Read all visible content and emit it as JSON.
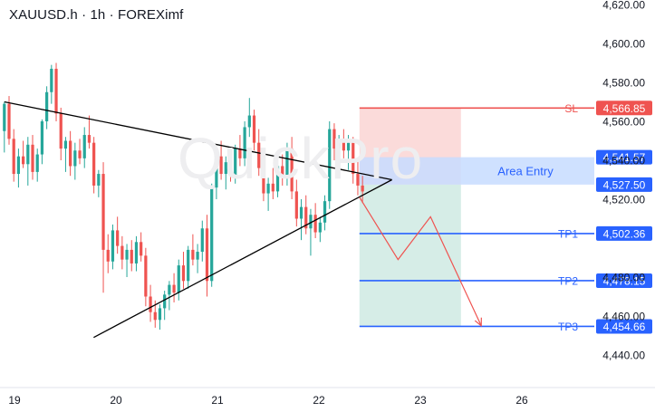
{
  "title": "XAUUSD.h · 1h · FOREXimf",
  "watermark": "QuickPro",
  "colors": {
    "up": "#26a69a",
    "down": "#ef5350",
    "sl": "#ef5350",
    "tp": "#2962ff",
    "entry_box": "#c7dcff",
    "entry_label_box": "#2962ff",
    "risk_zone": "#fbd9d8",
    "reward_zone": "#d4ece6",
    "trend_line": "#000000",
    "path": "#ef5350"
  },
  "chart_data": {
    "type": "candlestick",
    "symbol": "XAUUSD.h",
    "timeframe": "1h",
    "source": "FOREXimf",
    "y_axis": {
      "ylim": [
        4430,
        4625
      ],
      "ticks": [
        4620,
        4600,
        4580,
        4560,
        4540,
        4520,
        4480,
        4460,
        4440
      ],
      "tick_labels": [
        "4,620.00",
        "4,600.00",
        "4,580.00",
        "4,560.00",
        "4,540.00",
        "4,520.00",
        "4,480.00",
        "4,460.00",
        "4,440.00"
      ]
    },
    "x_axis": {
      "ticks": [
        0,
        1,
        2,
        3,
        4,
        5
      ],
      "tick_labels": [
        "19",
        "20",
        "21",
        "22",
        "23",
        "26"
      ],
      "range": [
        0,
        5.2
      ]
    },
    "price_levels": [
      {
        "id": "sl",
        "label": "SL",
        "price": 4566.85,
        "value_label": "4,566.85",
        "type": "stop-loss"
      },
      {
        "id": "entry_high",
        "label": "",
        "price": 4541.57,
        "value_label": "4,541.57",
        "type": "entry"
      },
      {
        "id": "entry_low",
        "label": "",
        "price": 4527.5,
        "value_label": "4,527.50",
        "type": "entry"
      },
      {
        "id": "tp1",
        "label": "TP1",
        "price": 4502.36,
        "value_label": "4,502.36",
        "type": "take-profit"
      },
      {
        "id": "tp2",
        "label": "TP2",
        "price": 4478.15,
        "value_label": "4,478.15",
        "type": "take-profit"
      },
      {
        "id": "tp3",
        "label": "TP3",
        "price": 4454.66,
        "value_label": "4,454.66",
        "type": "take-profit"
      }
    ],
    "entry_zone": {
      "label": "Area Entry",
      "top": 4541.57,
      "bottom": 4527.5
    },
    "position_box": {
      "x_start": 3.4,
      "x_end": 4.4,
      "entry": 4527.5,
      "stop": 4566.85,
      "target": 4454.66
    },
    "triangle": {
      "upper": [
        [
          -0.1,
          4570
        ],
        [
          3.72,
          4530
        ]
      ],
      "lower": [
        [
          0.78,
          4449
        ],
        [
          3.72,
          4530
        ]
      ]
    },
    "projected_path": [
      [
        3.4,
        4521
      ],
      [
        3.78,
        4489
      ],
      [
        4.1,
        4511
      ],
      [
        4.6,
        4455
      ]
    ],
    "candles": [
      [
        4555,
        4570,
        4544,
        4569
      ],
      [
        4569,
        4573,
        4548,
        4551
      ],
      [
        4551,
        4556,
        4529,
        4533
      ],
      [
        4533,
        4546,
        4526,
        4542
      ],
      [
        4542,
        4550,
        4536,
        4538
      ],
      [
        4538,
        4552,
        4527,
        4548
      ],
      [
        4548,
        4553,
        4530,
        4534
      ],
      [
        4534,
        4546,
        4529,
        4543
      ],
      [
        4543,
        4561,
        4538,
        4560
      ],
      [
        4560,
        4578,
        4556,
        4575
      ],
      [
        4575,
        4589,
        4569,
        4587
      ],
      [
        4587,
        4590,
        4560,
        4564
      ],
      [
        4564,
        4567,
        4540,
        4546
      ],
      [
        4546,
        4552,
        4534,
        4550
      ],
      [
        4550,
        4555,
        4532,
        4537
      ],
      [
        4537,
        4549,
        4530,
        4545
      ],
      [
        4545,
        4551,
        4538,
        4541
      ],
      [
        4541,
        4557,
        4536,
        4553
      ],
      [
        4553,
        4563,
        4546,
        4549
      ],
      [
        4549,
        4552,
        4523,
        4527
      ],
      [
        4527,
        4535,
        4521,
        4533
      ],
      [
        4533,
        4539,
        4472,
        4494
      ],
      [
        4494,
        4502,
        4482,
        4488
      ],
      [
        4488,
        4507,
        4484,
        4504
      ],
      [
        4504,
        4511,
        4492,
        4496
      ],
      [
        4496,
        4501,
        4484,
        4489
      ],
      [
        4489,
        4497,
        4480,
        4494
      ],
      [
        4494,
        4499,
        4483,
        4487
      ],
      [
        4487,
        4501,
        4483,
        4498
      ],
      [
        4498,
        4503,
        4488,
        4491
      ],
      [
        4491,
        4495,
        4465,
        4470
      ],
      [
        4470,
        4476,
        4457,
        4462
      ],
      [
        4462,
        4468,
        4454,
        4458
      ],
      [
        4458,
        4466,
        4453,
        4464
      ],
      [
        4464,
        4473,
        4458,
        4471
      ],
      [
        4471,
        4478,
        4463,
        4476
      ],
      [
        4476,
        4482,
        4467,
        4472
      ],
      [
        4472,
        4489,
        4468,
        4486
      ],
      [
        4486,
        4493,
        4474,
        4478
      ],
      [
        4478,
        4496,
        4474,
        4494
      ],
      [
        4494,
        4502,
        4486,
        4489
      ],
      [
        4489,
        4497,
        4482,
        4493
      ],
      [
        4493,
        4509,
        4488,
        4505
      ],
      [
        4505,
        4512,
        4470,
        4478
      ],
      [
        4478,
        4528,
        4475,
        4526
      ],
      [
        4526,
        4546,
        4520,
        4542
      ],
      [
        4542,
        4550,
        4530,
        4533
      ],
      [
        4533,
        4542,
        4525,
        4539
      ],
      [
        4539,
        4545,
        4529,
        4532
      ],
      [
        4532,
        4548,
        4528,
        4546
      ],
      [
        4546,
        4553,
        4537,
        4541
      ],
      [
        4541,
        4560,
        4537,
        4557
      ],
      [
        4557,
        4572,
        4552,
        4563
      ],
      [
        4563,
        4566,
        4545,
        4549
      ],
      [
        4549,
        4556,
        4532,
        4536
      ],
      [
        4536,
        4541,
        4519,
        4523
      ],
      [
        4523,
        4531,
        4514,
        4528
      ],
      [
        4528,
        4536,
        4520,
        4524
      ],
      [
        4524,
        4540,
        4521,
        4537
      ],
      [
        4537,
        4543,
        4527,
        4531
      ],
      [
        4531,
        4549,
        4527,
        4546
      ],
      [
        4546,
        4552,
        4520,
        4524
      ],
      [
        4524,
        4530,
        4506,
        4510
      ],
      [
        4510,
        4520,
        4499,
        4516
      ],
      [
        4516,
        4522,
        4502,
        4505
      ],
      [
        4505,
        4515,
        4491,
        4512
      ],
      [
        4512,
        4518,
        4500,
        4503
      ],
      [
        4503,
        4511,
        4498,
        4508
      ],
      [
        4508,
        4522,
        4504,
        4519
      ],
      [
        4519,
        4560,
        4515,
        4556
      ],
      [
        4556,
        4559,
        4540,
        4546
      ],
      [
        4546,
        4553,
        4536,
        4550
      ],
      [
        4550,
        4556,
        4541,
        4545
      ],
      [
        4545,
        4553,
        4535,
        4549
      ],
      [
        4549,
        4552,
        4528,
        4533
      ],
      [
        4533,
        4540,
        4522,
        4527
      ],
      [
        4527,
        4532,
        4518,
        4524
      ]
    ]
  }
}
